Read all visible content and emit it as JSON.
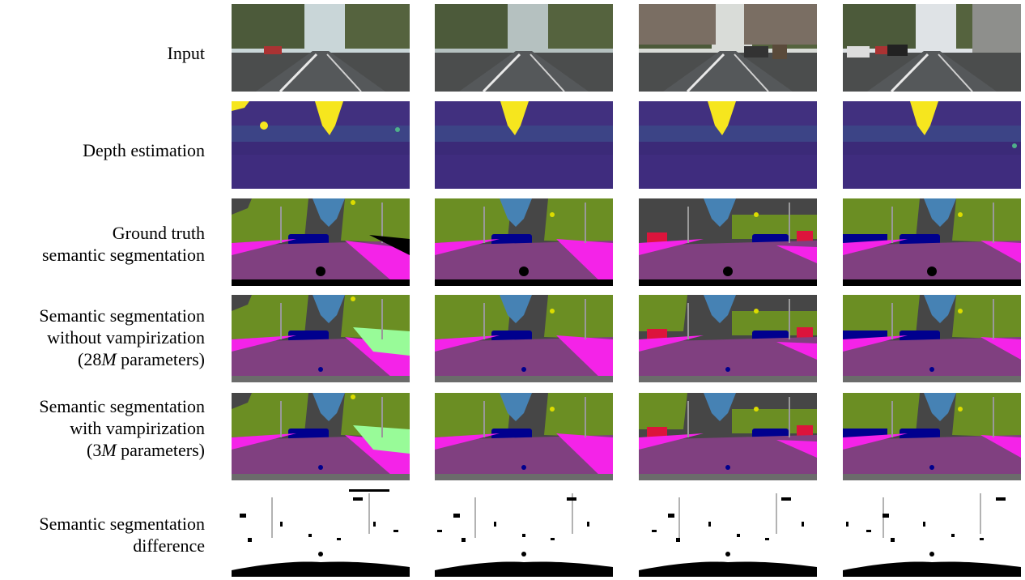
{
  "figure": {
    "rows": [
      {
        "id": "input",
        "label_lines": [
          "Input"
        ]
      },
      {
        "id": "depth",
        "label_lines": [
          "Depth estimation"
        ]
      },
      {
        "id": "gt",
        "label_lines": [
          "Ground truth",
          "semantic segmentation"
        ]
      },
      {
        "id": "without",
        "label_lines": [
          "Semantic segmentation",
          "without vampirization"
        ],
        "param_line": {
          "prefix": "(28",
          "var": "M",
          "suffix": " parameters)"
        }
      },
      {
        "id": "with",
        "label_lines": [
          "Semantic segmentation",
          "with vampirization"
        ],
        "param_line": {
          "prefix": "(3",
          "var": "M",
          "suffix": " parameters)"
        }
      },
      {
        "id": "diff",
        "label_lines": [
          "Semantic segmentation",
          "difference"
        ]
      }
    ],
    "num_columns": 4,
    "colors": {
      "road": "#804080",
      "sidewalk": "#f423e8",
      "vegetation": "#6b8e23",
      "sky": "#4682b4",
      "building": "#464646",
      "car": "#00008e",
      "person": "#dc143c",
      "sign": "#dcdc00",
      "terrain": "#98fb98",
      "pole": "#999999",
      "depth_bg": "#3b2a78",
      "depth_far": "#f6e61e",
      "depth_mid": "#2f6c8e"
    }
  }
}
